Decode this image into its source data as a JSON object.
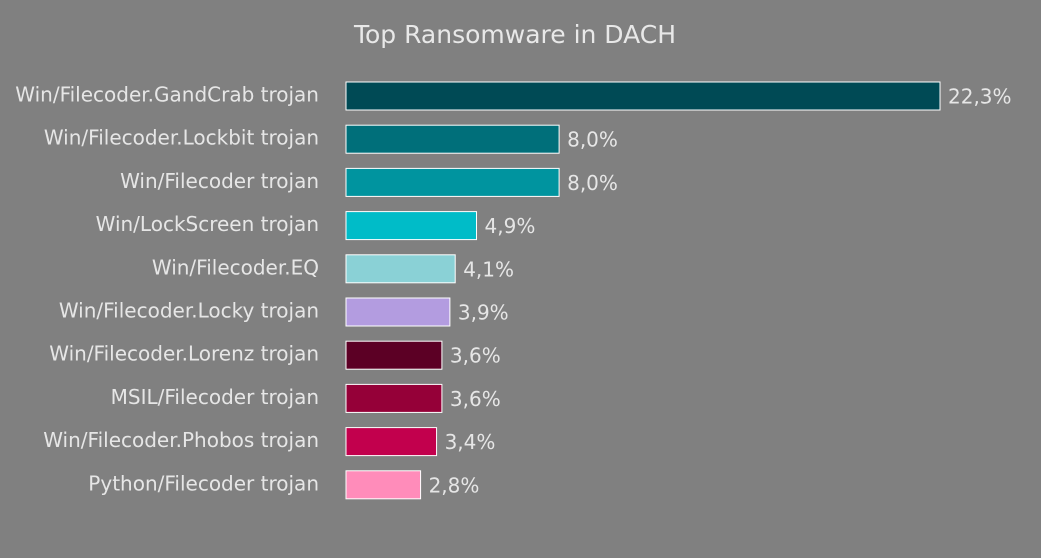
{
  "chart_data": {
    "type": "bar",
    "orientation": "horizontal",
    "title": "Top Ransomware in DACH",
    "categories": [
      "Win/Filecoder.GandCrab trojan",
      "Win/Filecoder.Lockbit trojan",
      "Win/Filecoder trojan",
      "Win/LockScreen trojan",
      "Win/Filecoder.EQ",
      "Win/Filecoder.Locky trojan",
      "Win/Filecoder.Lorenz trojan",
      "MSIL/Filecoder trojan",
      "Win/Filecoder.Phobos trojan",
      "Python/Filecoder trojan"
    ],
    "values": [
      22.3,
      8.0,
      8.0,
      4.9,
      4.1,
      3.9,
      3.6,
      3.6,
      3.4,
      2.8
    ],
    "value_labels": [
      "22,3%",
      "8,0%",
      "8,0%",
      "4,9%",
      "4,1%",
      "3,9%",
      "3,6%",
      "3,6%",
      "3,4%",
      "2,8%"
    ],
    "colors": [
      "#004a55",
      "#006f7a",
      "#00949f",
      "#00bcc8",
      "#8ad1d6",
      "#b39ce0",
      "#5c0025",
      "#950038",
      "#c2004d",
      "#ff8cba"
    ],
    "xlim": [
      0,
      22.3
    ],
    "grid": false,
    "legend": "none",
    "background": "#808080"
  }
}
